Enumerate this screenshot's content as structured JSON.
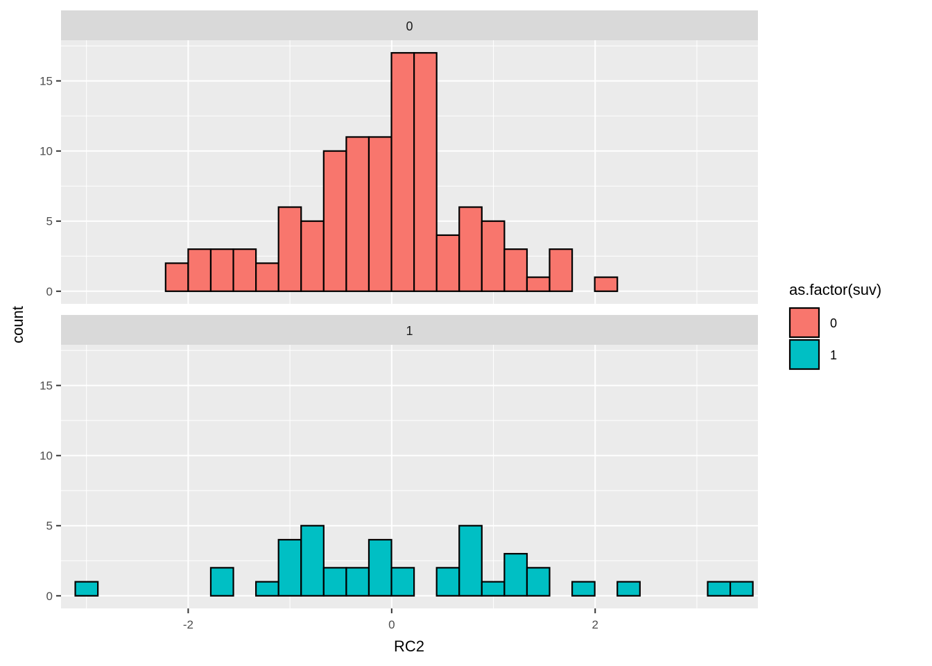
{
  "chart_data": {
    "type": "bar",
    "subtype": "faceted-histogram",
    "xlabel": "RC2",
    "ylabel": "count",
    "x_ticks": [
      -2,
      0,
      2
    ],
    "x_tick_labels": [
      "-2",
      "0",
      "2"
    ],
    "y_ticks": [
      0,
      5,
      10,
      15
    ],
    "y_tick_labels": [
      "0",
      "5",
      "10",
      "15"
    ],
    "xlim": [
      -3.25,
      3.6
    ],
    "ylim": [
      0,
      17.9
    ],
    "bin_width": 0.222,
    "bin_start": -3.11,
    "grid": true,
    "legend": {
      "title": "as.factor(suv)",
      "placement": "right",
      "entries": [
        {
          "label": "0",
          "color": "#F8766D"
        },
        {
          "label": "1",
          "color": "#00BFC4"
        }
      ]
    },
    "facets": [
      {
        "strip_label": "0",
        "fill": "#F8766D",
        "counts": [
          0,
          0,
          0,
          0,
          2,
          3,
          3,
          3,
          2,
          6,
          5,
          10,
          11,
          11,
          17,
          17,
          4,
          6,
          5,
          3,
          1,
          3,
          0,
          1,
          0,
          0,
          0,
          0,
          0,
          0
        ]
      },
      {
        "strip_label": "1",
        "fill": "#00BFC4",
        "counts": [
          1,
          0,
          0,
          0,
          0,
          0,
          2,
          0,
          1,
          4,
          5,
          2,
          2,
          4,
          2,
          0,
          2,
          5,
          1,
          3,
          2,
          0,
          1,
          0,
          1,
          0,
          0,
          0,
          1,
          1
        ]
      }
    ]
  }
}
